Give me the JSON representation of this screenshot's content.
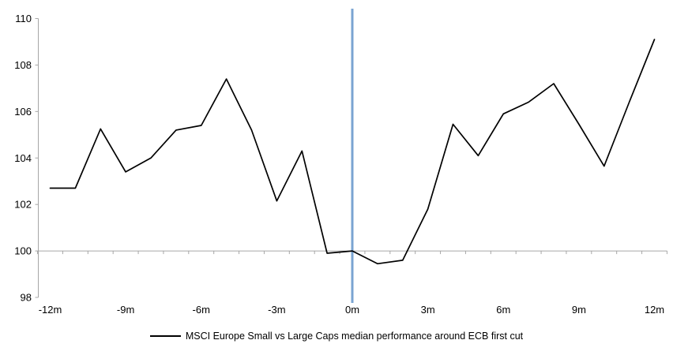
{
  "chart_data": {
    "type": "line",
    "title": "",
    "xlabel": "",
    "ylabel": "",
    "x_unit": "months relative to ECB first cut",
    "x": [
      -12,
      -11,
      -10,
      -9,
      -8,
      -7,
      -6,
      -5,
      -4,
      -3,
      -2,
      -1,
      0,
      1,
      2,
      3,
      4,
      5,
      6,
      7,
      8,
      9,
      10,
      11,
      12
    ],
    "series": [
      {
        "name": "MSCI Europe Small vs Large Caps median performance around ECB first cut",
        "color": "#000000",
        "values": [
          102.7,
          102.7,
          105.25,
          103.4,
          104.0,
          105.2,
          105.4,
          107.4,
          105.2,
          102.15,
          104.3,
          99.9,
          100.0,
          99.45,
          99.6,
          101.8,
          105.45,
          104.1,
          105.9,
          106.4,
          107.2,
          105.45,
          103.65,
          106.4,
          109.1
        ]
      }
    ],
    "xlim": [
      -12.5,
      12.5
    ],
    "ylim": [
      98,
      110
    ],
    "yticks": [
      98,
      100,
      102,
      104,
      106,
      108,
      110
    ],
    "xticks": {
      "positions": [
        -12,
        -9,
        -6,
        -3,
        0,
        3,
        6,
        9,
        12
      ],
      "labels": [
        "-12m",
        "-9m",
        "-6m",
        "-3m",
        "0m",
        "3m",
        "6m",
        "9m",
        "12m"
      ]
    },
    "baseline_value": 100,
    "event_line": {
      "x": 0,
      "color": "#7AA4D2"
    },
    "axis_color": "#A6A6A6",
    "text_color": "#000000",
    "grid": false,
    "legend_position": "bottom"
  }
}
